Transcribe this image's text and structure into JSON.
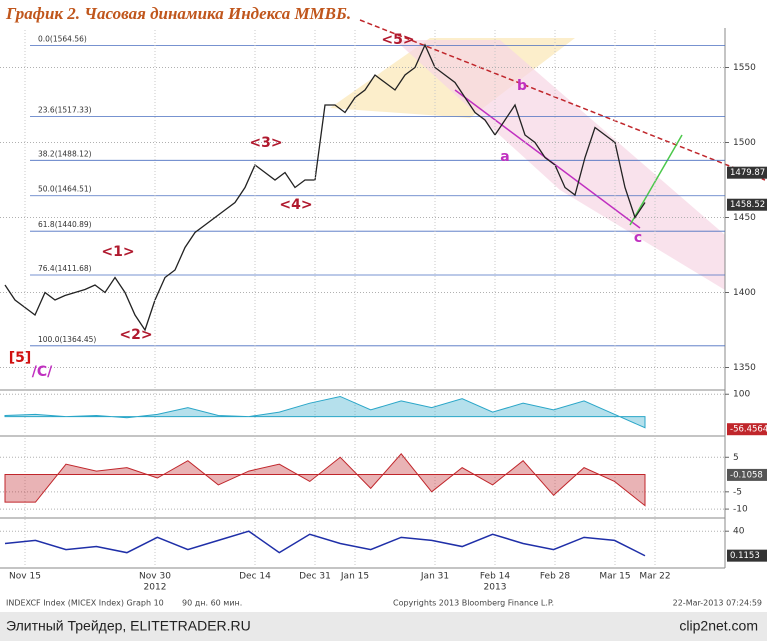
{
  "title": "График 2.   Часовая динамика Индекса ММВБ.",
  "footer": {
    "ticker": "INDEXCF Index (MICEX Index) Graph 10",
    "period": "90 дн. 60 мин.",
    "copyright": "Copyrights 2013 Bloomberg Finance L.P.",
    "timestamp": "22-Mar-2013 07:24:59"
  },
  "source": "Элитный Трейдер, ELITETRADER.RU",
  "watermark": "clip2net.com",
  "chart_data": [
    {
      "type": "line",
      "categories": [
        null,
        null,
        "Nov 15",
        null,
        null,
        null,
        null,
        null,
        null,
        null,
        null,
        null,
        null,
        null,
        null,
        "Nov 30",
        null,
        null,
        null,
        null,
        null,
        null,
        null,
        null,
        null,
        "Dec 14",
        null,
        null,
        null,
        null,
        null,
        "Dec 31",
        null,
        null,
        null,
        "Jan 15",
        null,
        null,
        null,
        null,
        null,
        null,
        null,
        "Jan 31",
        null,
        null,
        null,
        null,
        null,
        "Feb 14",
        null,
        null,
        null,
        null,
        null,
        "Feb 28",
        null,
        null,
        null,
        null,
        null,
        "Mar 15",
        null,
        null,
        null,
        "Mar 22",
        null,
        null,
        null,
        null,
        null,
        null
      ],
      "years": [
        {
          "label": "2012",
          "at": "Nov 30"
        },
        {
          "label": "2013",
          "at": "Feb 14"
        }
      ],
      "series": [
        {
          "name": "MICEX Index",
          "color": "#222222",
          "values": [
            1405,
            1395,
            1390,
            1385,
            1400,
            1395,
            1398,
            1400,
            1402,
            1405,
            1400,
            1410,
            1400,
            1385,
            1375,
            1395,
            1410,
            1415,
            1430,
            1440,
            1445,
            1450,
            1455,
            1460,
            1470,
            1485,
            1480,
            1475,
            1480,
            1470,
            1475,
            1475,
            1525,
            1525,
            1520,
            1530,
            1535,
            1545,
            1540,
            1535,
            1545,
            1550,
            1565,
            1550,
            1545,
            1540,
            1530,
            1520,
            1515,
            1505,
            1515,
            1525,
            1505,
            1500,
            1490,
            1485,
            1470,
            1465,
            1490,
            1510,
            1505,
            1500,
            1470,
            1450,
            1460,
            null,
            null,
            null,
            null,
            null,
            null,
            null
          ]
        }
      ],
      "ylim": [
        1335,
        1575
      ],
      "yticks": [
        1350,
        1400,
        1450,
        1500,
        1550
      ],
      "fib_levels": [
        {
          "value": 1564.56,
          "label": "0.0(1564.56)"
        },
        {
          "value": 1517.33,
          "label": "23.6(1517.33)"
        },
        {
          "value": 1488.12,
          "label": "38.2(1488.12)"
        },
        {
          "value": 1464.51,
          "label": "50.0(1464.51)"
        },
        {
          "value": 1440.89,
          "label": "61.8(1440.89)"
        },
        {
          "value": 1411.68,
          "label": "76.4(1411.68)"
        },
        {
          "value": 1364.45,
          "label": "100.0(1364.45)"
        }
      ],
      "price_tags": [
        1479.87,
        1458.52
      ],
      "annotations": [
        "<5>",
        "<3>",
        "<4>",
        "<1>",
        "<2>",
        "[5]",
        "/C/",
        "a",
        "b",
        "c"
      ]
    },
    {
      "type": "area",
      "color": "#2aa6c8",
      "values": [
        5,
        10,
        0,
        5,
        -5,
        10,
        40,
        5,
        0,
        20,
        60,
        90,
        30,
        70,
        40,
        80,
        20,
        60,
        30,
        70,
        10,
        -50
      ],
      "ylim": [
        -60,
        110
      ],
      "yticks": [
        100
      ],
      "price_tags": [
        {
          "value": -56.4564,
          "label": "-56.4564"
        }
      ]
    },
    {
      "type": "area",
      "color": "#c0262b",
      "values": [
        -8,
        -8,
        3,
        1,
        2,
        -1,
        4,
        -3,
        1,
        3,
        -2,
        5,
        -4,
        6,
        -5,
        2,
        -3,
        4,
        -6,
        2,
        -2,
        -9
      ],
      "ylim": [
        -12,
        10
      ],
      "yticks": [
        5,
        -5,
        -10
      ],
      "price_tags": [
        -0.1058
      ]
    },
    {
      "type": "line",
      "color": "#1f2fa8",
      "values": [
        20,
        25,
        10,
        15,
        5,
        30,
        10,
        25,
        40,
        5,
        35,
        20,
        10,
        30,
        25,
        15,
        35,
        20,
        10,
        30,
        25,
        0
      ],
      "ylim": [
        -20,
        55
      ],
      "yticks": [
        40
      ],
      "price_tags": [
        0.1153
      ]
    }
  ]
}
